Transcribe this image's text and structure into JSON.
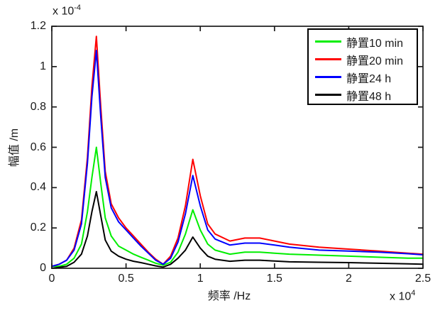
{
  "figure_background": "#ffffff",
  "axis_color": "#1a1a1a",
  "chart_data": {
    "type": "line",
    "title": "",
    "xlabel": "频率 /Hz",
    "ylabel": "幅值 /m",
    "x_multiplier": {
      "base": "x 10",
      "exponent": "4"
    },
    "y_multiplier": {
      "base": "x 10",
      "exponent": "-4"
    },
    "xlim": [
      0,
      2.5
    ],
    "ylim": [
      0,
      1.2
    ],
    "xticks": [
      0,
      0.5,
      1,
      1.5,
      2,
      2.5
    ],
    "xtick_labels": [
      "0",
      "0.5",
      "1",
      "1.5",
      "2",
      "2.5"
    ],
    "yticks": [
      0,
      0.2,
      0.4,
      0.6,
      0.8,
      1,
      1.2
    ],
    "ytick_labels": [
      "0",
      "0.2",
      "0.4",
      "0.6",
      "0.8",
      "1",
      "1.2"
    ],
    "grid": false,
    "legend_position": "top-right",
    "units_note": "x values in Hz ×10^4, y values in m ×10^-4",
    "x": [
      0,
      0.05,
      0.1,
      0.15,
      0.2,
      0.24,
      0.27,
      0.3,
      0.33,
      0.36,
      0.4,
      0.45,
      0.5,
      0.55,
      0.6,
      0.65,
      0.7,
      0.75,
      0.8,
      0.85,
      0.9,
      0.95,
      1.0,
      1.05,
      1.1,
      1.2,
      1.3,
      1.4,
      1.5,
      1.6,
      1.8,
      2.0,
      2.2,
      2.4,
      2.5
    ],
    "series": [
      {
        "name": "静置10 min",
        "color": "#00ee00",
        "values": [
          0.01,
          0.01,
          0.02,
          0.05,
          0.12,
          0.28,
          0.45,
          0.6,
          0.42,
          0.25,
          0.16,
          0.11,
          0.09,
          0.07,
          0.055,
          0.04,
          0.025,
          0.015,
          0.03,
          0.08,
          0.17,
          0.29,
          0.19,
          0.12,
          0.09,
          0.07,
          0.08,
          0.08,
          0.075,
          0.07,
          0.065,
          0.06,
          0.055,
          0.05,
          0.05
        ]
      },
      {
        "name": "静置20 min",
        "color": "#ff0000",
        "values": [
          0.01,
          0.02,
          0.04,
          0.1,
          0.24,
          0.55,
          0.9,
          1.15,
          0.8,
          0.48,
          0.32,
          0.25,
          0.2,
          0.16,
          0.12,
          0.08,
          0.045,
          0.02,
          0.06,
          0.15,
          0.31,
          0.54,
          0.36,
          0.22,
          0.17,
          0.135,
          0.15,
          0.15,
          0.135,
          0.12,
          0.105,
          0.095,
          0.085,
          0.075,
          0.07
        ]
      },
      {
        "name": "静置24 h",
        "color": "#0000ff",
        "values": [
          0.01,
          0.02,
          0.04,
          0.09,
          0.22,
          0.52,
          0.85,
          1.08,
          0.75,
          0.45,
          0.3,
          0.23,
          0.19,
          0.15,
          0.11,
          0.075,
          0.04,
          0.02,
          0.05,
          0.13,
          0.27,
          0.46,
          0.31,
          0.19,
          0.145,
          0.115,
          0.125,
          0.125,
          0.115,
          0.105,
          0.09,
          0.085,
          0.08,
          0.072,
          0.067
        ]
      },
      {
        "name": "静置48 h",
        "color": "#000000",
        "values": [
          0.0,
          0.005,
          0.01,
          0.03,
          0.07,
          0.16,
          0.28,
          0.38,
          0.26,
          0.14,
          0.085,
          0.06,
          0.045,
          0.035,
          0.028,
          0.02,
          0.012,
          0.006,
          0.02,
          0.05,
          0.09,
          0.155,
          0.1,
          0.06,
          0.045,
          0.035,
          0.04,
          0.04,
          0.036,
          0.032,
          0.03,
          0.028,
          0.025,
          0.022,
          0.02
        ]
      }
    ]
  }
}
